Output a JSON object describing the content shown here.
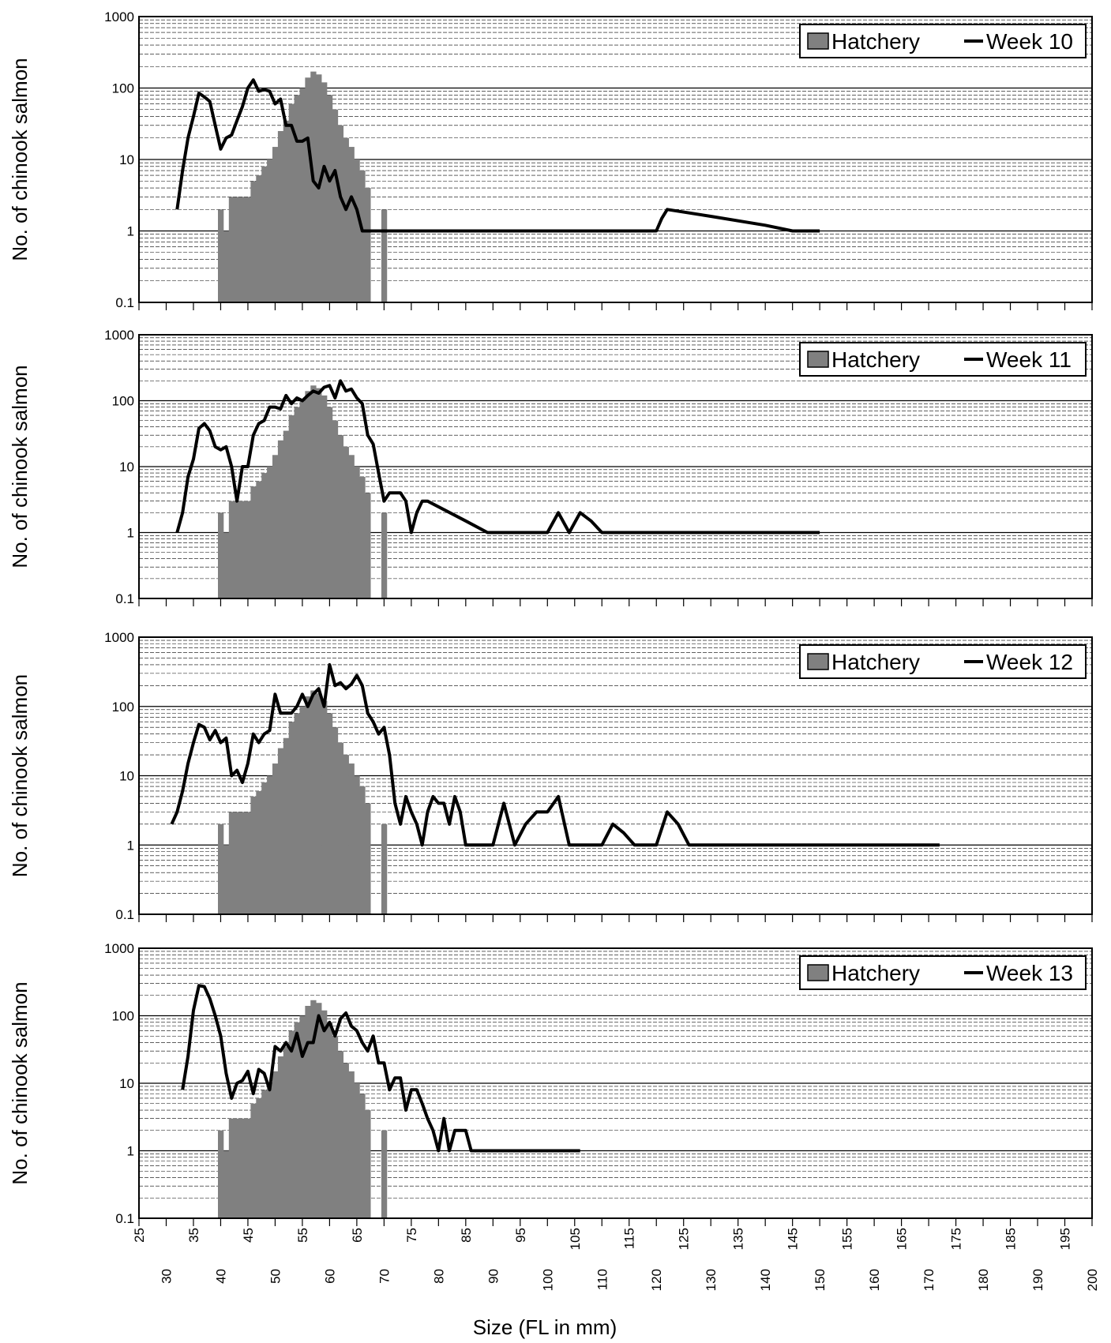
{
  "figure": {
    "ylabel": "No. of chinook salmon",
    "xlabel": "Size (FL in mm)"
  },
  "colors": {
    "hatchery_bar": "#808080",
    "week_line": "#000000",
    "gridline": "#000000",
    "plot_background": "#ffffff"
  },
  "chart_data": [
    {
      "type": "bar+line",
      "yscale": "log",
      "ylim": [
        0.1,
        1000
      ],
      "yticks": [
        "0.1",
        "1",
        "10",
        "100",
        "1000"
      ],
      "xlim": [
        25,
        200
      ],
      "xticks": [
        "25",
        "30",
        "35",
        "40",
        "45",
        "50",
        "55",
        "60",
        "65",
        "70",
        "75",
        "80",
        "85",
        "90",
        "95",
        "100",
        "105",
        "110",
        "115",
        "120",
        "125",
        "130",
        "135",
        "140",
        "145",
        "150",
        "155",
        "160",
        "165",
        "170",
        "175",
        "180",
        "185",
        "190",
        "195",
        "200"
      ],
      "ylabel": "No. of chinook salmon",
      "xlabel": "",
      "legend": {
        "position": "top-right",
        "entries": [
          "Hatchery",
          "Week 10"
        ]
      },
      "grid": "horizontal minor+major",
      "series": [
        {
          "name": "Hatchery",
          "kind": "bar",
          "x": [
            40,
            41,
            42,
            43,
            44,
            45,
            46,
            47,
            48,
            49,
            50,
            51,
            52,
            53,
            54,
            55,
            56,
            57,
            58,
            59,
            60,
            61,
            62,
            63,
            64,
            65,
            66,
            67,
            68,
            69,
            70
          ],
          "values": [
            2,
            1,
            3,
            3,
            3,
            3,
            5,
            6,
            8,
            10,
            15,
            25,
            35,
            60,
            80,
            100,
            140,
            170,
            155,
            120,
            80,
            50,
            30,
            20,
            15,
            10,
            7,
            4,
            0,
            0,
            2
          ]
        },
        {
          "name": "Week 10",
          "kind": "line",
          "x": [
            32,
            33,
            34,
            35,
            36,
            37,
            38,
            39,
            40,
            41,
            42,
            43,
            44,
            45,
            46,
            47,
            48,
            49,
            50,
            51,
            52,
            53,
            54,
            55,
            56,
            57,
            58,
            59,
            60,
            61,
            62,
            63,
            64,
            65,
            66,
            67,
            68,
            69,
            70,
            80,
            90,
            100,
            110,
            120,
            121,
            122,
            130,
            140,
            145,
            150
          ],
          "values": [
            2,
            7,
            20,
            40,
            85,
            75,
            65,
            30,
            14,
            20,
            22,
            35,
            55,
            100,
            130,
            90,
            95,
            90,
            60,
            70,
            30,
            30,
            18,
            18,
            20,
            5,
            4,
            8,
            5,
            7,
            3,
            2,
            3,
            2,
            1,
            1,
            1,
            1,
            1,
            1,
            1,
            1,
            1,
            1,
            1.5,
            2,
            1.6,
            1.2,
            1,
            1
          ]
        }
      ]
    },
    {
      "type": "bar+line",
      "yscale": "log",
      "ylim": [
        0.1,
        1000
      ],
      "yticks": [
        "0.1",
        "1",
        "10",
        "100",
        "1000"
      ],
      "xlim": [
        25,
        200
      ],
      "ylabel": "No. of chinook salmon",
      "xlabel": "",
      "legend": {
        "position": "top-right",
        "entries": [
          "Hatchery",
          "Week 11"
        ]
      },
      "grid": "horizontal minor+major",
      "series": [
        {
          "name": "Hatchery",
          "kind": "bar",
          "x": [
            40,
            41,
            42,
            43,
            44,
            45,
            46,
            47,
            48,
            49,
            50,
            51,
            52,
            53,
            54,
            55,
            56,
            57,
            58,
            59,
            60,
            61,
            62,
            63,
            64,
            65,
            66,
            67,
            68,
            69,
            70
          ],
          "values": [
            2,
            1,
            3,
            3,
            3,
            3,
            5,
            6,
            8,
            10,
            15,
            25,
            35,
            60,
            80,
            100,
            140,
            170,
            155,
            120,
            80,
            50,
            30,
            20,
            15,
            10,
            7,
            4,
            0,
            0,
            2
          ]
        },
        {
          "name": "Week 11",
          "kind": "line",
          "x": [
            32,
            33,
            34,
            35,
            36,
            37,
            38,
            39,
            40,
            41,
            42,
            43,
            44,
            45,
            46,
            47,
            48,
            49,
            50,
            51,
            52,
            53,
            54,
            55,
            56,
            57,
            58,
            59,
            60,
            61,
            62,
            63,
            64,
            65,
            66,
            67,
            68,
            69,
            70,
            71,
            72,
            73,
            74,
            75,
            76,
            77,
            78,
            85,
            89,
            95,
            100,
            102,
            104,
            106,
            108,
            110,
            120,
            130,
            140,
            150
          ],
          "values": [
            1,
            2,
            7,
            13,
            38,
            45,
            35,
            20,
            18,
            20,
            10,
            3,
            10,
            10,
            30,
            45,
            50,
            80,
            80,
            75,
            120,
            90,
            110,
            100,
            120,
            140,
            130,
            160,
            170,
            110,
            200,
            140,
            150,
            110,
            90,
            30,
            22,
            8,
            3,
            4,
            4,
            4,
            3,
            1,
            2,
            3,
            3,
            1.5,
            1,
            1,
            1,
            2,
            1,
            2,
            1.5,
            1,
            1,
            1,
            1,
            1
          ]
        }
      ]
    },
    {
      "type": "bar+line",
      "yscale": "log",
      "ylim": [
        0.1,
        1000
      ],
      "yticks": [
        "0.1",
        "1",
        "10",
        "100",
        "1000"
      ],
      "xlim": [
        25,
        200
      ],
      "ylabel": "No. of chinook salmon",
      "xlabel": "",
      "legend": {
        "position": "top-right",
        "entries": [
          "Hatchery",
          "Week 12"
        ]
      },
      "grid": "horizontal minor+major",
      "series": [
        {
          "name": "Hatchery",
          "kind": "bar",
          "x": [
            40,
            41,
            42,
            43,
            44,
            45,
            46,
            47,
            48,
            49,
            50,
            51,
            52,
            53,
            54,
            55,
            56,
            57,
            58,
            59,
            60,
            61,
            62,
            63,
            64,
            65,
            66,
            67,
            68,
            69,
            70
          ],
          "values": [
            2,
            1,
            3,
            3,
            3,
            3,
            5,
            6,
            8,
            10,
            15,
            25,
            35,
            60,
            80,
            100,
            140,
            170,
            155,
            120,
            80,
            50,
            30,
            20,
            15,
            10,
            7,
            4,
            0,
            0,
            2
          ]
        },
        {
          "name": "Week 12",
          "kind": "line",
          "x": [
            31,
            32,
            33,
            34,
            35,
            36,
            37,
            38,
            39,
            40,
            41,
            42,
            43,
            44,
            45,
            46,
            47,
            48,
            49,
            50,
            51,
            52,
            53,
            54,
            55,
            56,
            57,
            58,
            59,
            60,
            61,
            62,
            63,
            64,
            65,
            66,
            67,
            68,
            69,
            70,
            71,
            72,
            73,
            74,
            75,
            76,
            77,
            78,
            79,
            80,
            81,
            82,
            83,
            84,
            85,
            86,
            88,
            90,
            92,
            94,
            96,
            98,
            100,
            102,
            104,
            106,
            108,
            110,
            112,
            114,
            116,
            118,
            120,
            122,
            124,
            126,
            128,
            130,
            140,
            150,
            160,
            172
          ],
          "values": [
            2,
            3,
            6,
            15,
            30,
            55,
            50,
            33,
            45,
            30,
            35,
            10,
            12,
            8,
            15,
            40,
            30,
            40,
            45,
            150,
            80,
            80,
            80,
            100,
            150,
            100,
            150,
            180,
            100,
            400,
            200,
            220,
            180,
            210,
            280,
            200,
            80,
            60,
            40,
            50,
            20,
            4,
            2,
            5,
            3,
            2,
            1,
            3,
            5,
            4,
            4,
            2,
            5,
            3,
            1,
            1,
            1,
            1,
            4,
            1,
            2,
            3,
            3,
            5,
            1,
            1,
            1,
            1,
            2,
            1.5,
            1,
            1,
            1,
            3,
            2,
            1,
            1,
            1,
            1,
            1,
            1,
            1
          ]
        }
      ]
    },
    {
      "type": "bar+line",
      "yscale": "log",
      "ylim": [
        0.1,
        1000
      ],
      "yticks": [
        "0.1",
        "1",
        "10",
        "100",
        "1000"
      ],
      "xlim": [
        25,
        200
      ],
      "ylabel": "No. of chinook salmon",
      "xlabel": "Size (FL in mm)",
      "legend": {
        "position": "top-right",
        "entries": [
          "Hatchery",
          "Week 13"
        ]
      },
      "grid": "horizontal minor+major",
      "series": [
        {
          "name": "Hatchery",
          "kind": "bar",
          "x": [
            40,
            41,
            42,
            43,
            44,
            45,
            46,
            47,
            48,
            49,
            50,
            51,
            52,
            53,
            54,
            55,
            56,
            57,
            58,
            59,
            60,
            61,
            62,
            63,
            64,
            65,
            66,
            67,
            68,
            69,
            70
          ],
          "values": [
            2,
            1,
            3,
            3,
            3,
            3,
            5,
            6,
            8,
            10,
            15,
            25,
            35,
            60,
            80,
            100,
            140,
            170,
            155,
            120,
            80,
            50,
            30,
            20,
            15,
            10,
            7,
            4,
            0,
            0,
            2
          ]
        },
        {
          "name": "Week 13",
          "kind": "line",
          "x": [
            33,
            34,
            35,
            36,
            37,
            38,
            39,
            40,
            41,
            42,
            43,
            44,
            45,
            46,
            47,
            48,
            49,
            50,
            51,
            52,
            53,
            54,
            55,
            56,
            57,
            58,
            59,
            60,
            61,
            62,
            63,
            64,
            65,
            66,
            67,
            68,
            69,
            70,
            71,
            72,
            73,
            74,
            75,
            76,
            77,
            78,
            79,
            80,
            81,
            82,
            83,
            84,
            85,
            86,
            87,
            88,
            89,
            90,
            95,
            100,
            106
          ],
          "values": [
            8,
            25,
            120,
            280,
            270,
            180,
            100,
            50,
            14,
            6,
            10,
            11,
            15,
            7,
            16,
            14,
            8,
            35,
            30,
            40,
            30,
            55,
            25,
            40,
            40,
            100,
            60,
            80,
            50,
            90,
            110,
            70,
            60,
            40,
            30,
            50,
            20,
            20,
            8,
            12,
            12,
            4,
            8,
            8,
            5,
            3,
            2,
            1,
            3,
            1,
            2,
            2,
            2,
            1,
            1,
            1,
            1,
            1,
            1,
            1,
            1
          ]
        }
      ]
    }
  ]
}
